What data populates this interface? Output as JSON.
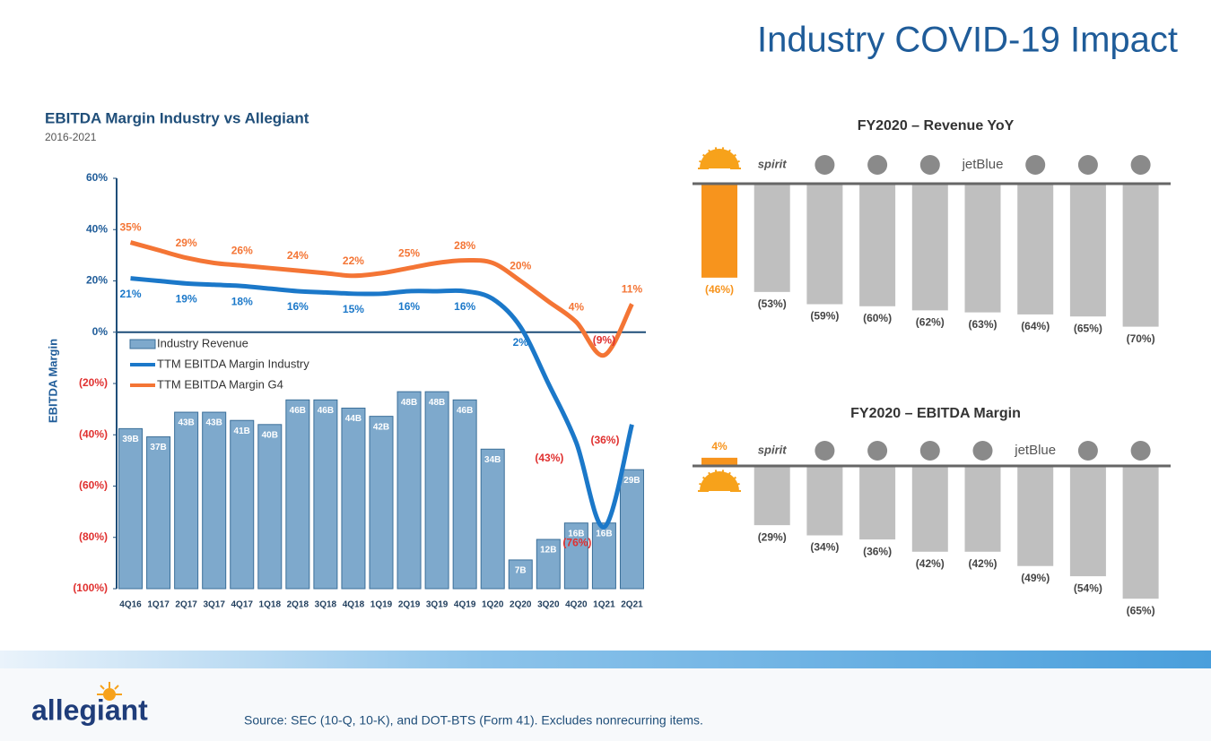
{
  "title": "Industry COVID-19 Impact",
  "footer": "Source: SEC (10-Q, 10-K), and DOT-BTS (Form 41). Excludes nonrecurring items.",
  "logo": "allegiant",
  "chart_data": [
    {
      "type": "combo",
      "title": "EBITDA Margin Industry vs Allegiant",
      "subtitle": "2016-2021",
      "y_label": "EBITDA Margin",
      "categories": [
        "4Q16",
        "1Q17",
        "2Q17",
        "3Q17",
        "4Q17",
        "1Q18",
        "2Q18",
        "3Q18",
        "4Q18",
        "1Q19",
        "2Q19",
        "3Q19",
        "4Q19",
        "1Q20",
        "2Q20",
        "3Q20",
        "4Q20",
        "1Q21",
        "2Q21"
      ],
      "ylim": [
        -100,
        60
      ],
      "yticks": [
        {
          "value": 60,
          "label": "60%"
        },
        {
          "value": 40,
          "label": "40%"
        },
        {
          "value": 20,
          "label": "20%"
        },
        {
          "value": 0,
          "label": "0%"
        },
        {
          "value": -20,
          "label": "(20%)"
        },
        {
          "value": -40,
          "label": "(40%)"
        },
        {
          "value": -60,
          "label": "(60%)"
        },
        {
          "value": -80,
          "label": "(80%)"
        },
        {
          "value": -100,
          "label": "(100%)"
        }
      ],
      "y2lim": [
        0,
        100
      ],
      "series": [
        {
          "name": "Industry Revenue",
          "type": "bar",
          "axis": "y2",
          "color": "#7ea9cc",
          "values": [
            39,
            37,
            43,
            43,
            41,
            40,
            46,
            46,
            44,
            42,
            48,
            48,
            46,
            34,
            7,
            12,
            16,
            16,
            29
          ],
          "value_labels": [
            "39B",
            "37B",
            "43B",
            "43B",
            "41B",
            "40B",
            "46B",
            "46B",
            "44B",
            "42B",
            "48B",
            "48B",
            "46B",
            "34B",
            "7B",
            "12B",
            "16B",
            "16B",
            "29B"
          ]
        },
        {
          "name": "TTM EBITDA Margin Industry",
          "type": "line",
          "color": "#1b78c9",
          "values": [
            21,
            20,
            19,
            18.5,
            18,
            17,
            16,
            15.5,
            15,
            15,
            16,
            16,
            16,
            13,
            2,
            -20,
            -43,
            -76,
            -36
          ],
          "value_labels": [
            "21%",
            null,
            "19%",
            null,
            "18%",
            null,
            "16%",
            null,
            "15%",
            null,
            "16%",
            null,
            "16%",
            null,
            "2%",
            null,
            "(43%)",
            "(76%)",
            "(36%)"
          ]
        },
        {
          "name": "TTM EBITDA Margin G4",
          "type": "line",
          "color": "#f47535",
          "values": [
            35,
            32,
            29,
            27,
            26,
            25,
            24,
            23,
            22,
            23,
            25,
            27,
            28,
            27,
            20,
            12,
            4,
            -9,
            11
          ],
          "value_labels": [
            "35%",
            null,
            "29%",
            null,
            "26%",
            null,
            "24%",
            null,
            "22%",
            null,
            "25%",
            null,
            "28%",
            null,
            "20%",
            null,
            "4%",
            "(9%)",
            "11%"
          ]
        }
      ]
    },
    {
      "type": "bar",
      "title": "FY2020 – Revenue YoY",
      "categories": [
        null,
        "spirit",
        null,
        null,
        null,
        "jetBlue",
        null,
        null,
        null
      ],
      "values": [
        -46,
        -53,
        -59,
        -60,
        -62,
        -63,
        -64,
        -65,
        -70
      ],
      "value_labels": [
        "(46%)",
        "(53%)",
        "(59%)",
        "(60%)",
        "(62%)",
        "(63%)",
        "(64%)",
        "(65%)",
        "(70%)"
      ],
      "colors": [
        "#f7941d",
        "#bfbfbf",
        "#bfbfbf",
        "#bfbfbf",
        "#bfbfbf",
        "#bfbfbf",
        "#bfbfbf",
        "#bfbfbf",
        "#bfbfbf"
      ],
      "ylim": [
        -100,
        0
      ]
    },
    {
      "type": "bar",
      "title": "FY2020 – EBITDA Margin",
      "categories": [
        null,
        "spirit",
        null,
        null,
        null,
        null,
        "jetBlue",
        null,
        null
      ],
      "values": [
        4,
        -29,
        -34,
        -36,
        -42,
        -42,
        -49,
        -54,
        -65
      ],
      "value_labels": [
        "4%",
        "(29%)",
        "(34%)",
        "(36%)",
        "(42%)",
        "(42%)",
        "(49%)",
        "(54%)",
        "(65%)"
      ],
      "colors": [
        "#f7941d",
        "#bfbfbf",
        "#bfbfbf",
        "#bfbfbf",
        "#bfbfbf",
        "#bfbfbf",
        "#bfbfbf",
        "#bfbfbf",
        "#bfbfbf"
      ],
      "ylim": [
        -100,
        10
      ]
    }
  ]
}
